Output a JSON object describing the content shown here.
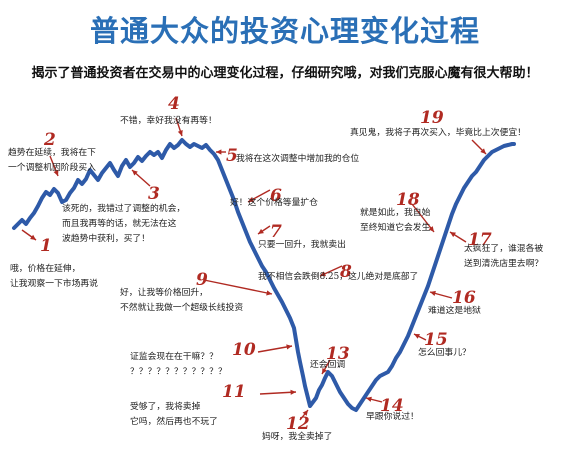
{
  "title": "普通大众的投资心理变化过程",
  "subtitle": "揭示了普通投资者在交易中的心理变化过程，仔细研究哦，对我们克服心魔有很大帮助！",
  "colors": {
    "title": "#2a6fb6",
    "curve": "#2e5aa8",
    "number": "#b02a22",
    "arrow": "#b02a22",
    "text": "#222222"
  },
  "stages": [
    {
      "num": "1",
      "lines": [
        "哦，价格在延伸，",
        "让我观察一下市场再说"
      ]
    },
    {
      "num": "2",
      "lines": [
        "趋势在延续，我将在下",
        "一个调整机因阶段买入"
      ]
    },
    {
      "num": "3",
      "lines": [
        "该死的，我错过了调整的机会，",
        "而且我再等的话，就无法在这",
        "波趋势中获利，买了！"
      ]
    },
    {
      "num": "4",
      "lines": [
        "不错，幸好我没有再等！"
      ]
    },
    {
      "num": "5",
      "lines": [
        "我将在这次调整中增加我的仓位"
      ]
    },
    {
      "num": "6",
      "lines": [
        "好！这个价格等量扩仓"
      ]
    },
    {
      "num": "7",
      "lines": [
        "只要一回升，我就卖出"
      ]
    },
    {
      "num": "8",
      "lines": [
        "我不相信会跌倒8.25，这儿绝对是底部了"
      ]
    },
    {
      "num": "9",
      "lines": [
        "好，让我等价格回升，",
        "不然就让我做一个超级长线投资"
      ]
    },
    {
      "num": "10",
      "lines": [
        "证监会现在在干嘛？？",
        "？？？？？？？？？？？"
      ]
    },
    {
      "num": "11",
      "lines": [
        "受够了，我将卖掉",
        "它吗，然后再也不玩了"
      ]
    },
    {
      "num": "12",
      "lines": [
        "妈呀，我全卖掉了"
      ]
    },
    {
      "num": "13",
      "lines": [
        "还会回调"
      ]
    },
    {
      "num": "14",
      "lines": [
        "早跟你说过！"
      ]
    },
    {
      "num": "15",
      "lines": [
        "怎么回事儿？"
      ]
    },
    {
      "num": "16",
      "lines": [
        "难道这是地狱"
      ]
    },
    {
      "num": "17",
      "lines": [
        "太疯狂了，谁混各被",
        "送到清洗店里去啊？"
      ]
    },
    {
      "num": "18",
      "lines": [
        "就是如此，我自始",
        "至终知道它会发生"
      ]
    },
    {
      "num": "19",
      "lines": [
        "真见鬼，我将子再次买入，毕竟比上次便宜！"
      ]
    }
  ]
}
